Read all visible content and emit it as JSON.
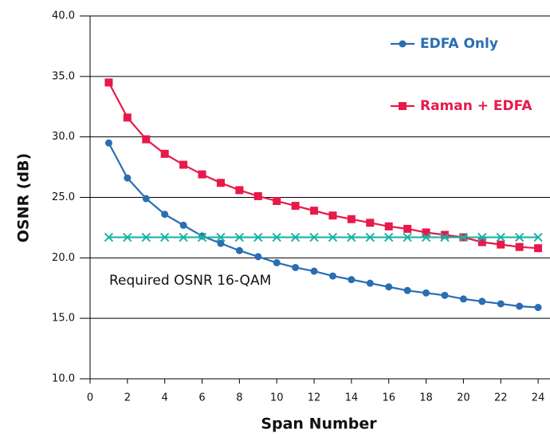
{
  "chart_data": {
    "type": "line",
    "xlabel": "Span Number",
    "ylabel": "OSNR (dB)",
    "annotation": "Required OSNR 16-QAM",
    "x": [
      1,
      2,
      3,
      4,
      5,
      6,
      7,
      8,
      9,
      10,
      11,
      12,
      13,
      14,
      15,
      16,
      17,
      18,
      19,
      20,
      21,
      22,
      23,
      24
    ],
    "series": [
      {
        "name": "EDFA Only",
        "color": "#2a6db3",
        "marker": "circle",
        "values": [
          29.5,
          26.6,
          24.9,
          23.6,
          22.7,
          21.8,
          21.2,
          20.6,
          20.1,
          19.6,
          19.2,
          18.9,
          18.5,
          18.2,
          17.9,
          17.6,
          17.3,
          17.1,
          16.9,
          16.6,
          16.4,
          16.2,
          16.0,
          15.9
        ]
      },
      {
        "name": "Raman + EDFA",
        "color": "#e8194a",
        "marker": "square",
        "values": [
          34.5,
          31.6,
          29.8,
          28.6,
          27.7,
          26.9,
          26.2,
          25.6,
          25.1,
          24.7,
          24.3,
          23.9,
          23.5,
          23.2,
          22.9,
          22.6,
          22.4,
          22.1,
          21.9,
          21.7,
          21.3,
          21.1,
          20.9,
          20.8
        ]
      },
      {
        "color": "#1ab3a6",
        "marker": "x",
        "values": [
          21.7,
          21.7,
          21.7,
          21.7,
          21.7,
          21.7,
          21.7,
          21.7,
          21.7,
          21.7,
          21.7,
          21.7,
          21.7,
          21.7,
          21.7,
          21.7,
          21.7,
          21.7,
          21.7,
          21.7,
          21.7,
          21.7,
          21.7,
          21.7
        ]
      }
    ],
    "xlim": [
      0,
      24.6
    ],
    "xticks": [
      0,
      2,
      4,
      6,
      8,
      10,
      12,
      14,
      16,
      18,
      20,
      22,
      24
    ],
    "ylim": [
      10,
      40
    ],
    "yticks": [
      {
        "value": 10,
        "label": "10.0"
      },
      {
        "value": 15,
        "label": "15.0"
      },
      {
        "value": 20,
        "label": "20.0"
      },
      {
        "value": 25,
        "label": "25.0"
      },
      {
        "value": 30,
        "label": "30.0"
      },
      {
        "value": 35,
        "label": "35.0"
      },
      {
        "value": 40,
        "label": "40.0"
      }
    ],
    "grid": true,
    "legend_position": "upper right"
  }
}
